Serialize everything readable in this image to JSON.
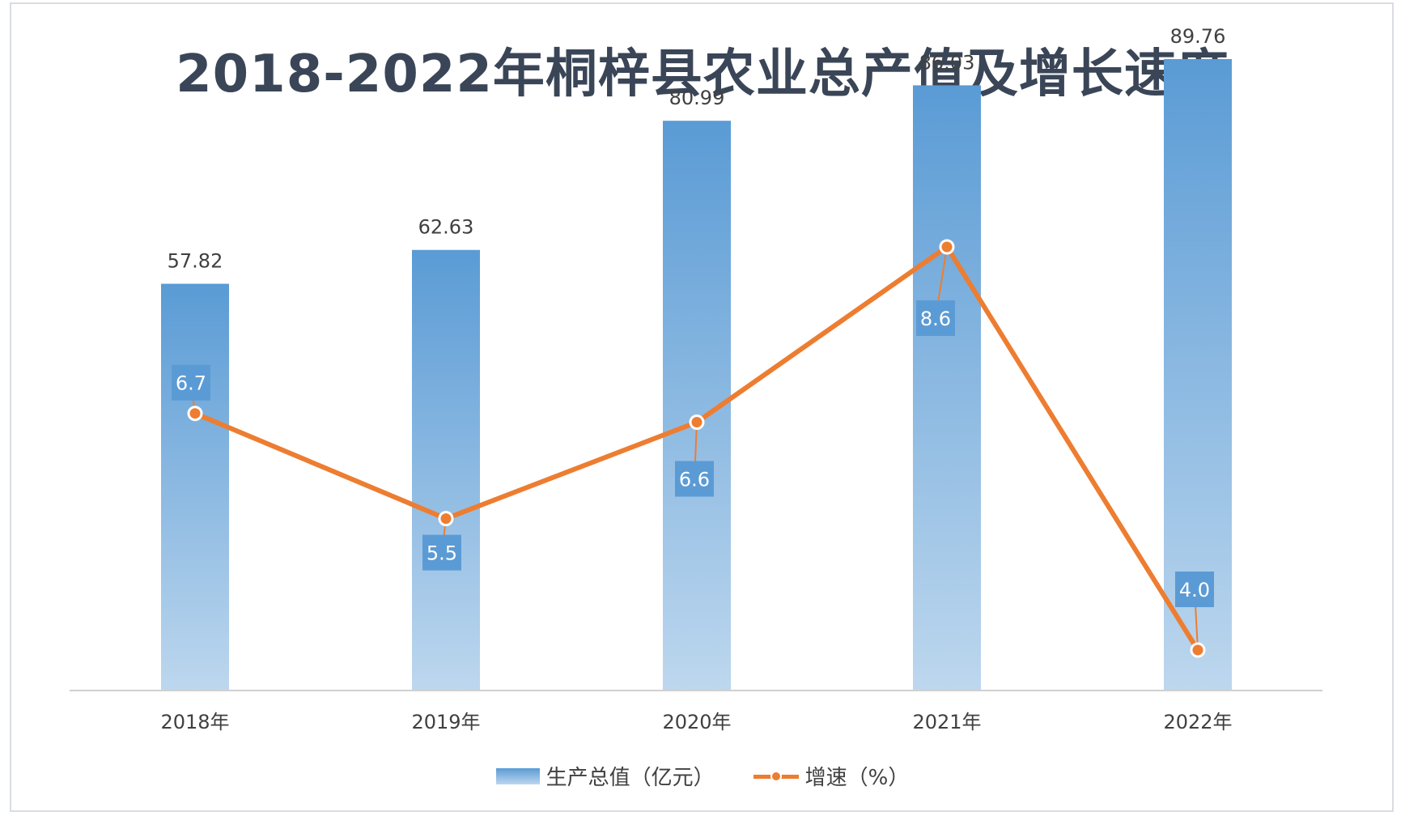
{
  "chart_data": {
    "type": "bar",
    "title": "2018-2022年桐梓县农业总产值及增长速度",
    "categories": [
      "2018年",
      "2019年",
      "2020年",
      "2021年",
      "2022年"
    ],
    "series": [
      {
        "name": "生产总值（亿元）",
        "type": "bar",
        "values": [
          57.82,
          62.63,
          80.99,
          86.03,
          89.76
        ],
        "labels": [
          "57.82",
          "62.63",
          "80.99",
          "86.03",
          "89.76"
        ]
      },
      {
        "name": "增速（%）",
        "type": "line",
        "values": [
          6.7,
          5.5,
          6.6,
          8.6,
          4.0
        ],
        "labels": [
          "6.7",
          "5.5",
          "6.6",
          "8.6",
          "4.0"
        ]
      }
    ],
    "ylim_bar": [
      0,
      100
    ],
    "ylim_line": [
      3.5,
      10.0
    ],
    "grid": false,
    "legend_position": "bottom"
  },
  "colors": {
    "bar_top": "#5a9bd5",
    "bar_bottom": "#bdd7ee",
    "line": "#ed7d31",
    "label_box": "#5b9bd5",
    "text": "#404040",
    "title": "#3a4657"
  }
}
